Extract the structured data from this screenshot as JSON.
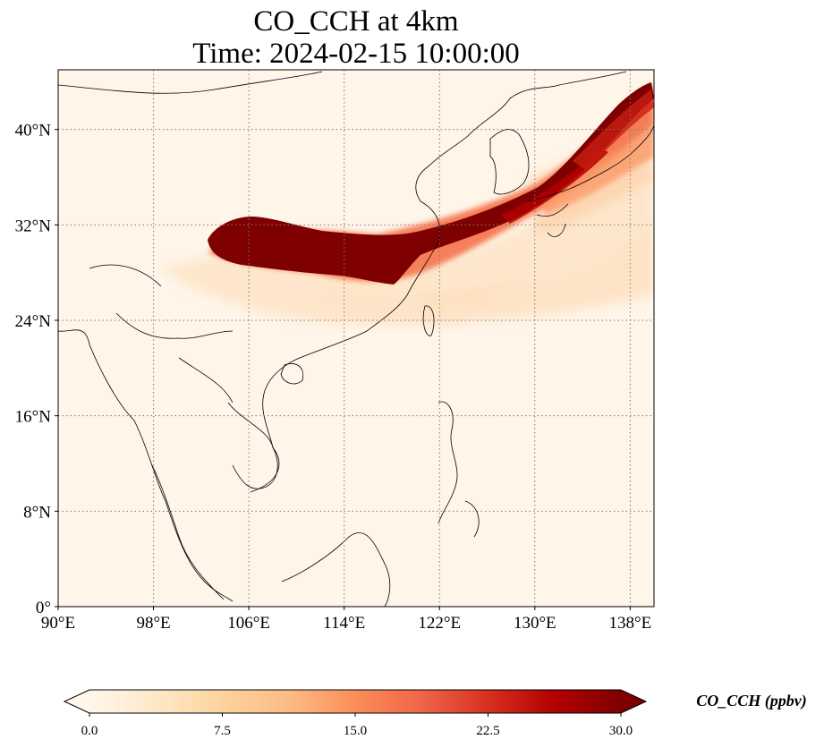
{
  "title": {
    "line1": "CO_CCH at 4km",
    "line2": "Time: 2024-02-15 10:00:00"
  },
  "map": {
    "lon_range": [
      90,
      140
    ],
    "lat_range": [
      0,
      45
    ],
    "lon_ticks": [
      {
        "value": 90,
        "label": "90°E"
      },
      {
        "value": 98,
        "label": "98°E"
      },
      {
        "value": 106,
        "label": "106°E"
      },
      {
        "value": 114,
        "label": "114°E"
      },
      {
        "value": 122,
        "label": "122°E"
      },
      {
        "value": 130,
        "label": "130°E"
      },
      {
        "value": 138,
        "label": "138°E"
      }
    ],
    "lat_ticks": [
      {
        "value": 0,
        "label": "0°"
      },
      {
        "value": 8,
        "label": "8°N"
      },
      {
        "value": 16,
        "label": "16°N"
      },
      {
        "value": 24,
        "label": "24°N"
      },
      {
        "value": 32,
        "label": "32°N"
      },
      {
        "value": 40,
        "label": "40°N"
      }
    ],
    "gridlines": true,
    "background_color": "#fff5e9",
    "coastline_color": "#000000"
  },
  "colorbar": {
    "label": "CO_CCH (ppbv)",
    "min": 0,
    "max": 30,
    "extend": "both",
    "colormap": "OrRd",
    "stops": [
      "#fff7ec",
      "#fee8c8",
      "#fdd49e",
      "#fdbb84",
      "#fc8d59",
      "#ef6548",
      "#d7301f",
      "#b30000",
      "#7f0000"
    ],
    "ticks": [
      {
        "value": 0,
        "label": "0.0"
      },
      {
        "value": 7.5,
        "label": "7.5"
      },
      {
        "value": 15,
        "label": "15.0"
      },
      {
        "value": 22.5,
        "label": "22.5"
      },
      {
        "value": 30,
        "label": "30.0"
      }
    ]
  }
}
